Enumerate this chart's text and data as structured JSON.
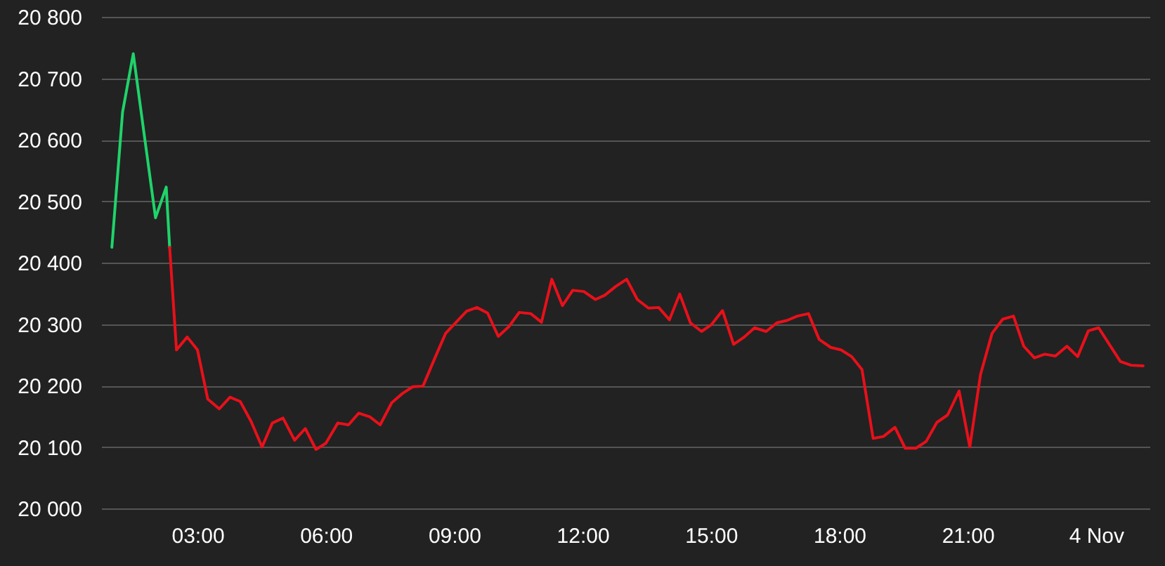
{
  "chart_data": {
    "type": "line",
    "xlim": [
      0.75,
      25.25
    ],
    "ylim": [
      20000,
      20800
    ],
    "xticks": [
      {
        "value": 3,
        "label": "03:00"
      },
      {
        "value": 6,
        "label": "06:00"
      },
      {
        "value": 9,
        "label": "09:00"
      },
      {
        "value": 12,
        "label": "12:00"
      },
      {
        "value": 15,
        "label": "15:00"
      },
      {
        "value": 18,
        "label": "18:00"
      },
      {
        "value": 21,
        "label": "21:00"
      },
      {
        "value": 24,
        "label": "4 Nov"
      }
    ],
    "yticks": [
      {
        "value": 20000,
        "label": "20 000"
      },
      {
        "value": 20100,
        "label": "20 100"
      },
      {
        "value": 20200,
        "label": "20 200"
      },
      {
        "value": 20300,
        "label": "20 300"
      },
      {
        "value": 20400,
        "label": "20 400"
      },
      {
        "value": 20500,
        "label": "20 500"
      },
      {
        "value": 20600,
        "label": "20 600"
      },
      {
        "value": 20700,
        "label": "20 700"
      },
      {
        "value": 20800,
        "label": "20 800"
      }
    ],
    "grid": "y",
    "line_style": "solid",
    "marker": "none",
    "series": [
      {
        "color": "#1fd36a",
        "x": [
          1.0,
          1.25,
          1.5,
          1.76,
          2.02,
          2.27,
          2.35
        ],
        "values": [
          20425,
          20645,
          20740,
          20606,
          20473,
          20523,
          20425
        ]
      },
      {
        "color": "#e8101a",
        "x": [
          2.35,
          2.51,
          2.76,
          3.0,
          3.24,
          3.51,
          3.76,
          4.0,
          4.25,
          4.51,
          4.75,
          5.0,
          5.27,
          5.52,
          5.77,
          6.0,
          6.28,
          6.53,
          6.77,
          7.03,
          7.27,
          7.54,
          7.79,
          8.03,
          8.27,
          8.55,
          8.8,
          9.29,
          9.53,
          9.78,
          10.03,
          10.28,
          10.52,
          10.79,
          11.04,
          11.28,
          11.53,
          11.77,
          12.03,
          12.3,
          12.52,
          12.77,
          13.03,
          13.28,
          13.54,
          13.78,
          14.03,
          14.27,
          14.52,
          14.78,
          15.01,
          15.27,
          15.53,
          15.78,
          16.02,
          16.29,
          16.54,
          16.78,
          17.02,
          17.28,
          17.53,
          17.8,
          18.04,
          18.29,
          18.53,
          18.79,
          19.03,
          19.3,
          19.54,
          19.79,
          20.03,
          20.28,
          20.53,
          20.8,
          21.05,
          21.3,
          21.57,
          21.82,
          22.07,
          22.31,
          22.56,
          22.8,
          23.05,
          23.32,
          23.57,
          23.82,
          24.06,
          24.31,
          24.57,
          24.82,
          25.1
        ],
        "values": [
          20425,
          20258,
          20279,
          20258,
          20178,
          20162,
          20181,
          20174,
          20142,
          20100,
          20139,
          20147,
          20111,
          20130,
          20096,
          20106,
          20139,
          20136,
          20155,
          20149,
          20136,
          20172,
          20187,
          20198,
          20199,
          20245,
          20285,
          20321,
          20327,
          20318,
          20280,
          20296,
          20319,
          20317,
          20303,
          20373,
          20330,
          20355,
          20353,
          20340,
          20347,
          20361,
          20373,
          20340,
          20326,
          20327,
          20307,
          20349,
          20302,
          20288,
          20299,
          20322,
          20267,
          20279,
          20294,
          20288,
          20302,
          20306,
          20313,
          20317,
          20275,
          20262,
          20258,
          20247,
          20226,
          20114,
          20117,
          20132,
          20098,
          20098,
          20109,
          20140,
          20152,
          20191,
          20100,
          20218,
          20285,
          20308,
          20313,
          20264,
          20245,
          20251,
          20248,
          20264,
          20247,
          20289,
          20294,
          20267,
          20239,
          20233,
          20232
        ]
      }
    ]
  }
}
